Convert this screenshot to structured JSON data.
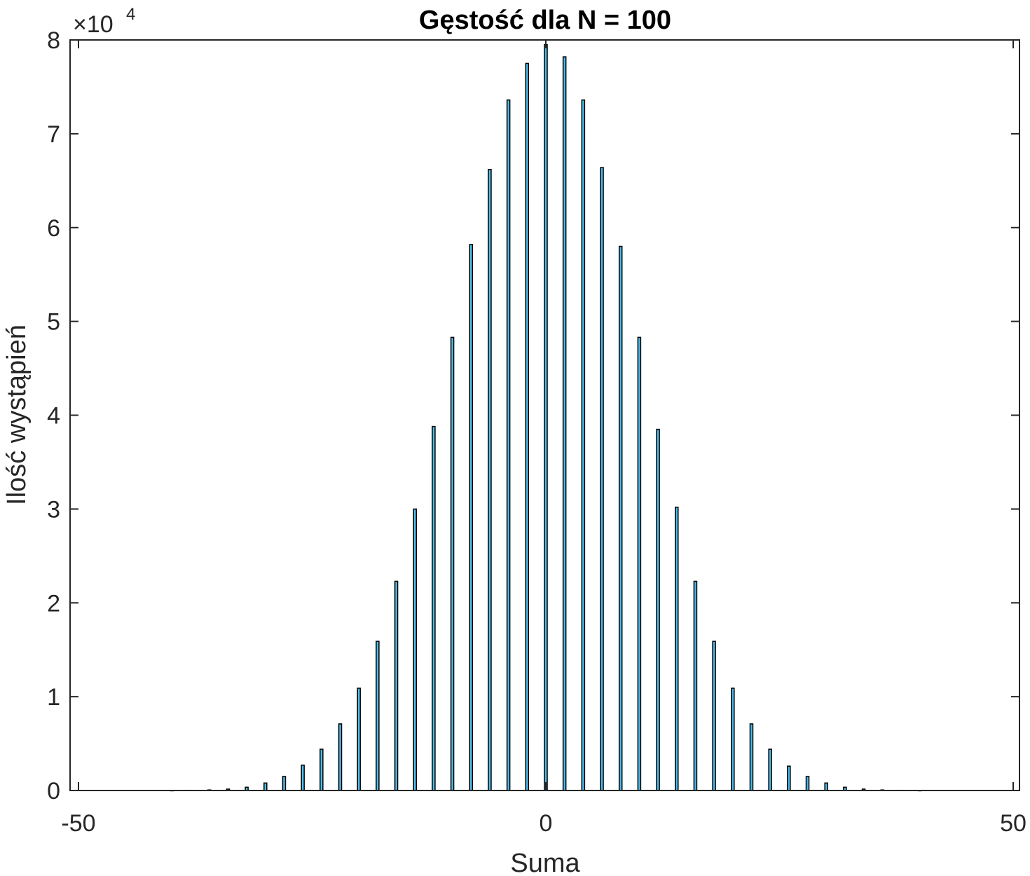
{
  "chart_data": {
    "type": "bar",
    "title": "Gęstość dla N = 100",
    "xlabel": "Suma",
    "ylabel": "Ilość wystąpień",
    "y_multiplier_base": "×10",
    "y_multiplier_exp": "4",
    "xlim": [
      -50,
      50
    ],
    "ylim": [
      0,
      80000
    ],
    "xticks": [
      -50,
      0,
      50
    ],
    "yticks": [
      0,
      10000,
      20000,
      30000,
      40000,
      50000,
      60000,
      70000,
      80000
    ],
    "ytick_labels": [
      "0",
      "1",
      "2",
      "3",
      "4",
      "5",
      "6",
      "7",
      "8"
    ],
    "xtick_labels": [
      "-50",
      "0",
      "50"
    ],
    "grid": false,
    "colors": {
      "bar_fill": "#4dbeee",
      "bar_edge": "#000000",
      "axis": "#262626"
    },
    "series": [
      {
        "x": [
          -40,
          -38,
          -36,
          -34,
          -32,
          -30,
          -28,
          -26,
          -24,
          -22,
          -20,
          -18,
          -16,
          -14,
          -12,
          -10,
          -8,
          -6,
          -4,
          -2,
          0,
          2,
          4,
          6,
          8,
          10,
          12,
          14,
          16,
          18,
          20,
          22,
          24,
          26,
          28,
          30,
          32,
          34,
          36,
          38,
          40
        ],
        "values": [
          5,
          20,
          60,
          150,
          350,
          800,
          1500,
          2700,
          4400,
          7100,
          10900,
          15900,
          22300,
          30000,
          38800,
          48300,
          58200,
          66200,
          73600,
          77500,
          79500,
          78200,
          73600,
          66400,
          58000,
          48300,
          38500,
          30200,
          22300,
          15900,
          10900,
          7100,
          4400,
          2600,
          1500,
          800,
          350,
          150,
          60,
          20,
          5
        ]
      }
    ]
  }
}
